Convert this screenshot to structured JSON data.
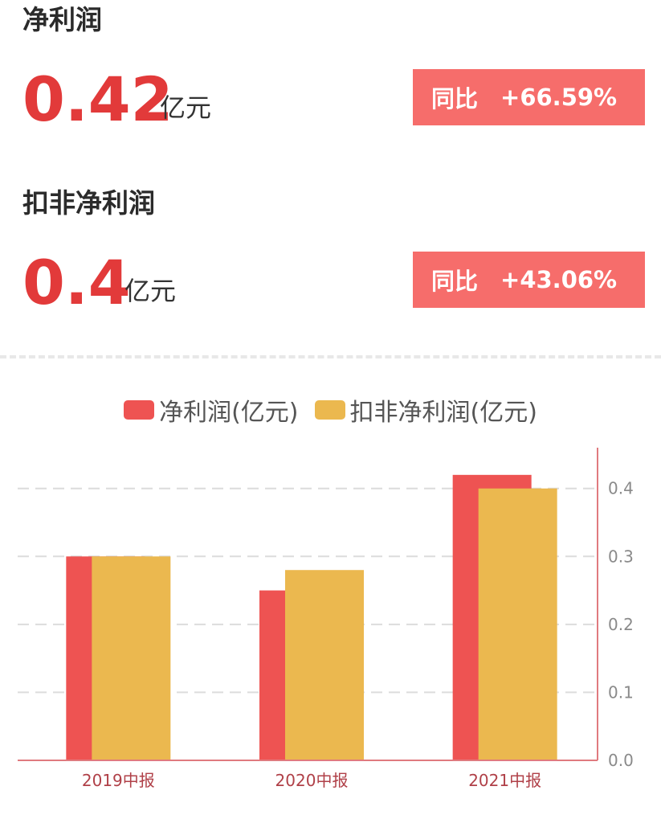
{
  "metrics": [
    {
      "title": "净利润",
      "value": "0.42",
      "unit": "亿元",
      "yoy_label": "同比",
      "yoy_value": "+66.59%"
    },
    {
      "title": "扣非净利润",
      "value": "0.4",
      "unit": "亿元",
      "yoy_label": "同比",
      "yoy_value": "+43.06%"
    }
  ],
  "colors": {
    "accent_red": "#e23a3a",
    "badge": "#f66d6b",
    "series_net_profit": "#ee5352",
    "series_deducted": "#ebb84f",
    "axis": "#e07a7f"
  },
  "chart_data": {
    "type": "bar",
    "categories": [
      "2019中报",
      "2020中报",
      "2021中报"
    ],
    "series": [
      {
        "name": "净利润(亿元)",
        "values": [
          0.3,
          0.25,
          0.42
        ]
      },
      {
        "name": "扣非净利润(亿元)",
        "values": [
          0.3,
          0.28,
          0.4
        ]
      }
    ],
    "yticks": [
      "0.0",
      "0.1",
      "0.2",
      "0.3",
      "0.4"
    ],
    "ylim": [
      0,
      0.46
    ],
    "y_axis_position": "right",
    "grid": true,
    "legend": "top"
  }
}
